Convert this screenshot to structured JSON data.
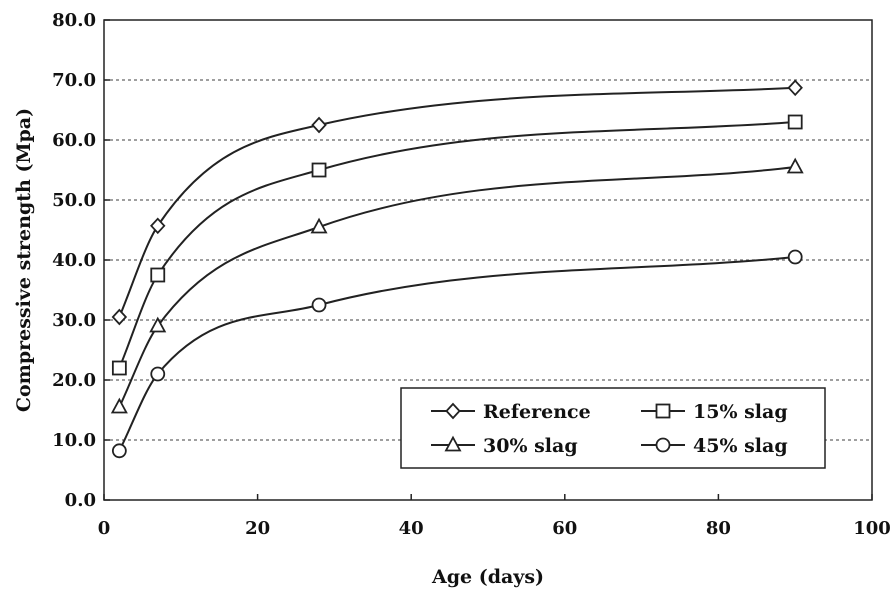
{
  "chart_data": {
    "type": "line",
    "title": "",
    "xlabel": "Age (days)",
    "ylabel": "Compressive strength (Mpa)",
    "xlim": [
      0,
      100
    ],
    "ylim": [
      0,
      80
    ],
    "xticks": [
      "0",
      "20",
      "40",
      "60",
      "80",
      "100"
    ],
    "yticks": [
      "0.0",
      "10.0",
      "20.0",
      "30.0",
      "40.0",
      "50.0",
      "60.0",
      "70.0",
      "80.0"
    ],
    "grid": "horizontal-dashed",
    "legend_position": "bottom-right",
    "x": [
      2,
      7,
      28,
      90
    ],
    "series": [
      {
        "name": "Reference",
        "marker": "diamond",
        "values": [
          30.5,
          45.7,
          62.5,
          68.7
        ]
      },
      {
        "name": "15% slag",
        "marker": "square",
        "values": [
          22.0,
          37.5,
          55.0,
          63.0
        ]
      },
      {
        "name": "30% slag",
        "marker": "triangle",
        "values": [
          15.5,
          29.0,
          45.5,
          55.5
        ]
      },
      {
        "name": "45% slag",
        "marker": "circle",
        "values": [
          8.2,
          21.0,
          32.5,
          40.5
        ]
      }
    ]
  }
}
